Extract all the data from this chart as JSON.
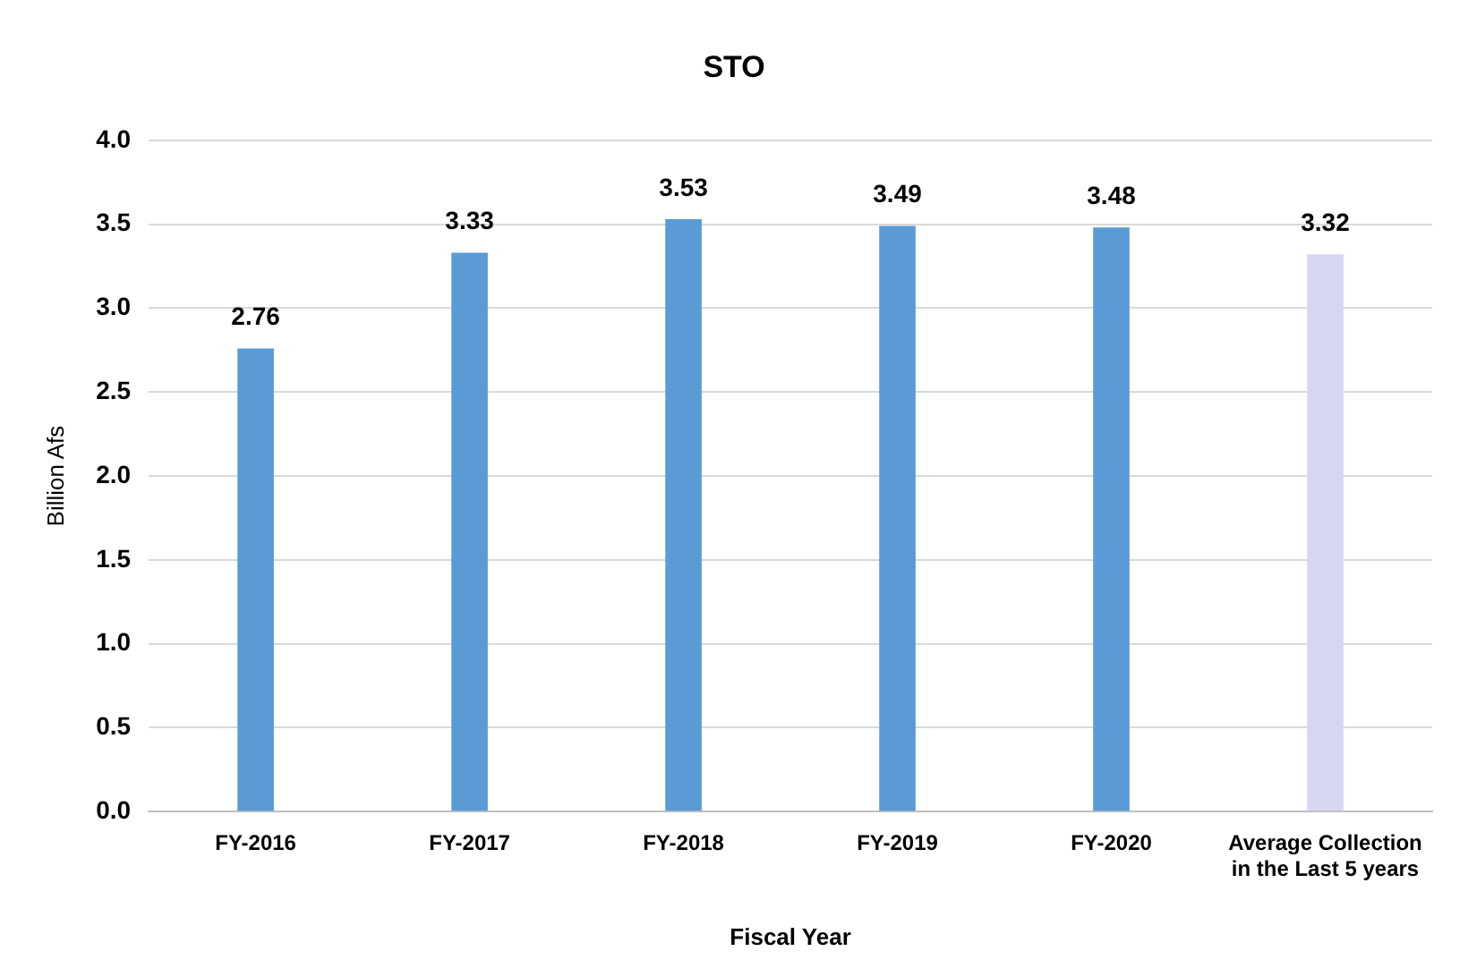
{
  "chart_data": {
    "type": "bar",
    "title": "STO",
    "xlabel": "Fiscal Year",
    "ylabel": "Billion Afs",
    "categories": [
      "FY-2016",
      "FY-2017",
      "FY-2018",
      "FY-2019",
      "FY-2020",
      "Average Collection in the Last 5 years"
    ],
    "values": [
      2.76,
      3.33,
      3.53,
      3.49,
      3.48,
      3.32
    ],
    "colors": [
      "#5b9bd5",
      "#5b9bd5",
      "#5b9bd5",
      "#5b9bd5",
      "#5b9bd5",
      "#d6d6f0"
    ],
    "ylim": [
      0,
      4
    ],
    "yticks": [
      {
        "value": 0,
        "label": "0.0"
      },
      {
        "value": 0.5,
        "label": "0.5"
      },
      {
        "value": 1,
        "label": "1.0"
      },
      {
        "value": 1.5,
        "label": "1.5"
      },
      {
        "value": 2,
        "label": "2.0"
      },
      {
        "value": 2.5,
        "label": "2.5"
      },
      {
        "value": 3,
        "label": "3.0"
      },
      {
        "value": 3.5,
        "label": "3.5"
      },
      {
        "value": 4,
        "label": "4.0"
      }
    ],
    "grid": "y",
    "data_labels": true,
    "legend": false
  }
}
